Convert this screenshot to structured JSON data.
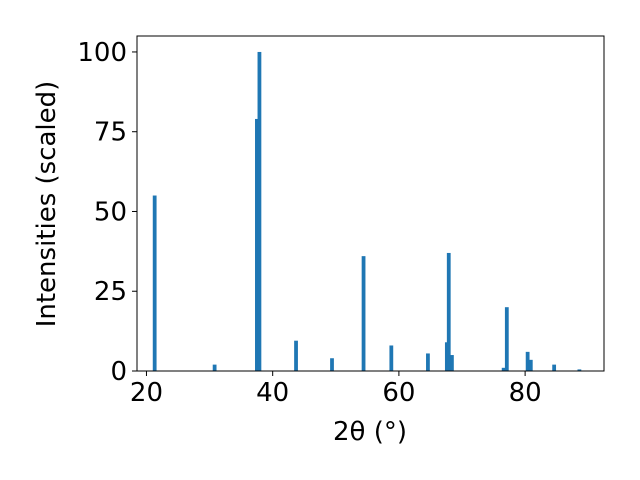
{
  "chart_data": {
    "type": "bar",
    "title": "",
    "xlabel": "2θ (°)",
    "ylabel": "Intensities (scaled)",
    "xlim": [
      18.5,
      92.5
    ],
    "ylim": [
      0,
      105
    ],
    "xticks": [
      20,
      40,
      60,
      80
    ],
    "yticks": [
      0,
      25,
      50,
      75,
      100
    ],
    "grid": false,
    "bar_width_deg": 0.6,
    "color": "#1f77b4",
    "series": [
      {
        "x": [
          21.3,
          30.8,
          37.5,
          37.9,
          43.7,
          49.4,
          54.4,
          58.8,
          64.6,
          67.6,
          67.9,
          68.4,
          76.6,
          77.1,
          80.4,
          80.9,
          84.6,
          88.6
        ],
        "values": [
          55,
          2,
          79,
          100,
          9.5,
          4,
          36,
          8,
          5.5,
          9,
          37,
          5,
          1,
          20,
          6,
          3.5,
          2,
          0.5
        ]
      }
    ]
  }
}
